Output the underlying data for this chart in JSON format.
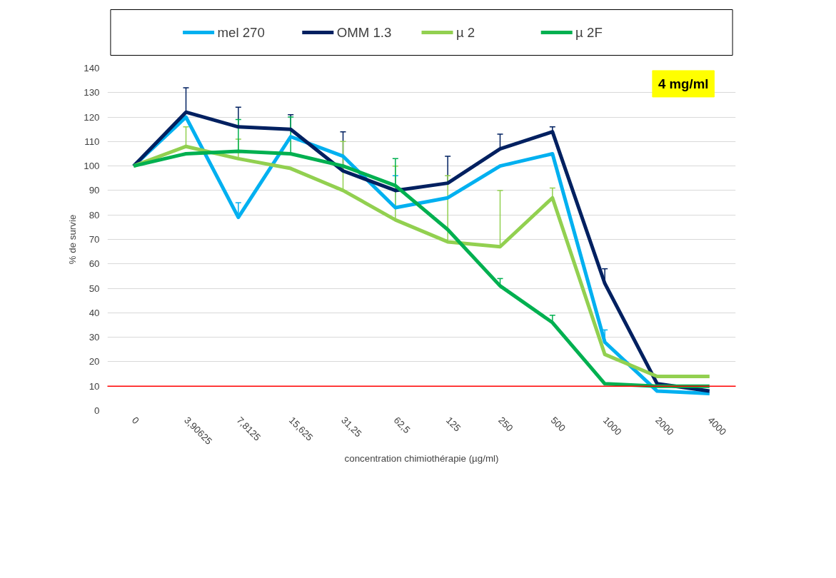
{
  "chart_data": {
    "type": "line",
    "xlabel": "concentration chimiothérapie (µg/ml)",
    "ylabel": "% de survie",
    "categories": [
      "0",
      "3,90625",
      "7,8125",
      "15,625",
      "31,25",
      "62,5",
      "125",
      "250",
      "500",
      "1000",
      "2000",
      "4000"
    ],
    "series": [
      {
        "name": "mel 270",
        "color": "#00b0f0",
        "values": [
          100,
          120,
          79,
          112,
          104,
          83,
          87,
          100,
          105,
          28,
          8,
          7
        ],
        "errors": [
          null,
          null,
          [
            79,
            85
          ],
          null,
          null,
          [
            83,
            96
          ],
          null,
          null,
          null,
          [
            28,
            33
          ],
          null,
          null
        ]
      },
      {
        "name": "OMM 1.3",
        "color": "#002060",
        "values": [
          100,
          122,
          116,
          115,
          98,
          90,
          93,
          107,
          114,
          52,
          11,
          8
        ],
        "errors": [
          null,
          [
            122,
            132
          ],
          [
            116,
            124
          ],
          [
            115,
            121
          ],
          [
            98,
            114
          ],
          null,
          [
            93,
            104
          ],
          [
            107,
            113
          ],
          [
            114,
            116
          ],
          [
            52,
            58
          ],
          null,
          null
        ]
      },
      {
        "name": "µ 2",
        "color": "#92d050",
        "values": [
          100,
          108,
          103,
          99,
          90,
          78,
          69,
          67,
          87,
          23,
          14,
          14
        ],
        "errors": [
          null,
          [
            108,
            116
          ],
          [
            103,
            111
          ],
          null,
          [
            90,
            110
          ],
          [
            78,
            100
          ],
          [
            69,
            96
          ],
          [
            67,
            90
          ],
          [
            87,
            91
          ],
          null,
          null,
          null
        ]
      },
      {
        "name": "µ 2F",
        "color": "#00b050",
        "values": [
          100,
          105,
          106,
          105,
          100,
          92,
          74,
          51,
          36,
          11,
          10,
          10
        ],
        "errors": [
          null,
          null,
          [
            106,
            119
          ],
          [
            105,
            120
          ],
          null,
          [
            92,
            103
          ],
          null,
          [
            51,
            54
          ],
          [
            36,
            39
          ],
          null,
          null,
          null
        ]
      }
    ],
    "ylim": [
      0,
      140
    ],
    "yticks": [
      0,
      10,
      20,
      30,
      40,
      50,
      60,
      70,
      80,
      90,
      100,
      110,
      120,
      130,
      140
    ],
    "grid": "y",
    "legend": "top",
    "marker": "none",
    "line_style": "solid",
    "ref_lines": [
      {
        "axis": "y",
        "value": 10,
        "label": null,
        "color": "#ff0000"
      }
    ],
    "annotations": [
      "4 mg/ml"
    ]
  }
}
